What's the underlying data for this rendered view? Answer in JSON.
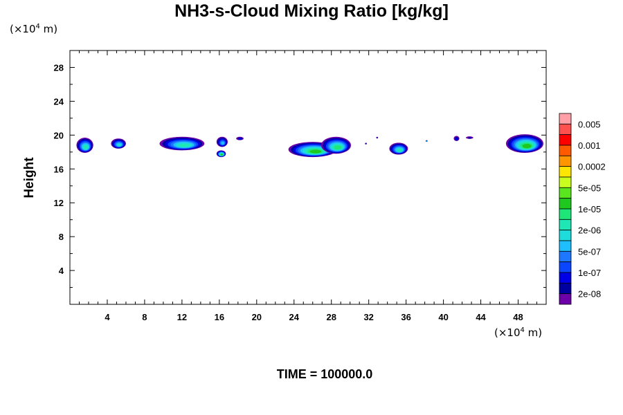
{
  "chart_data": {
    "type": "heatmap",
    "title": "NH3-s-Cloud Mixing Ratio [kg/kg]",
    "ylabel": "Height",
    "xlabel": "",
    "x_unit": {
      "prefix": "(×10",
      "exp": "4",
      "suffix": " m)"
    },
    "y_unit": {
      "prefix": "(×10",
      "exp": "4",
      "suffix": " m)"
    },
    "xlim": [
      0,
      51
    ],
    "ylim": [
      0,
      30
    ],
    "x_ticks": [
      4,
      8,
      12,
      16,
      20,
      24,
      28,
      32,
      36,
      40,
      44,
      48
    ],
    "y_ticks": [
      4,
      8,
      12,
      16,
      20,
      24,
      28
    ],
    "colorbar": {
      "labels": [
        "0.005",
        "0.001",
        "0.0002",
        "5e-05",
        "1e-05",
        "2e-06",
        "5e-07",
        "1e-07",
        "2e-08"
      ],
      "colors": [
        "#ff9fa8",
        "#ff5050",
        "#ff0000",
        "#ff5a00",
        "#ff9600",
        "#ffe600",
        "#c8ff1e",
        "#5ae61e",
        "#1ec81e",
        "#1ee678",
        "#1ee6b4",
        "#1edcdc",
        "#1ebeff",
        "#1e78ff",
        "#0a46ff",
        "#0000e6",
        "#0000a0",
        "#6e00aa"
      ]
    },
    "clouds": [
      {
        "x": 1.6,
        "y": 18.8,
        "rx": 0.9,
        "ry": 0.9,
        "level": 10
      },
      {
        "x": 5.2,
        "y": 19.0,
        "rx": 0.8,
        "ry": 0.6,
        "level": 11
      },
      {
        "x": 12.0,
        "y": 19.0,
        "rx": 2.4,
        "ry": 0.8,
        "level": 10
      },
      {
        "x": 16.3,
        "y": 19.2,
        "rx": 0.6,
        "ry": 0.6,
        "level": 12
      },
      {
        "x": 16.2,
        "y": 17.8,
        "rx": 0.5,
        "ry": 0.4,
        "level": 8
      },
      {
        "x": 18.2,
        "y": 19.6,
        "rx": 0.4,
        "ry": 0.2,
        "level": 15
      },
      {
        "x": 26.0,
        "y": 18.3,
        "rx": 2.6,
        "ry": 0.9,
        "level": 8
      },
      {
        "x": 28.5,
        "y": 18.8,
        "rx": 1.6,
        "ry": 1.0,
        "level": 9
      },
      {
        "x": 32.9,
        "y": 19.7,
        "rx": 0.1,
        "ry": 0.1,
        "level": 16
      },
      {
        "x": 31.7,
        "y": 19.0,
        "rx": 0.1,
        "ry": 0.1,
        "level": 16
      },
      {
        "x": 35.2,
        "y": 18.4,
        "rx": 1.0,
        "ry": 0.7,
        "level": 10
      },
      {
        "x": 38.2,
        "y": 19.3,
        "rx": 0.1,
        "ry": 0.1,
        "level": 12
      },
      {
        "x": 41.4,
        "y": 19.6,
        "rx": 0.3,
        "ry": 0.3,
        "level": 15
      },
      {
        "x": 42.8,
        "y": 19.7,
        "rx": 0.4,
        "ry": 0.15,
        "level": 16
      },
      {
        "x": 48.7,
        "y": 19.0,
        "rx": 2.0,
        "ry": 1.1,
        "level": 8
      }
    ]
  },
  "time_label": "TIME = 100000.0"
}
